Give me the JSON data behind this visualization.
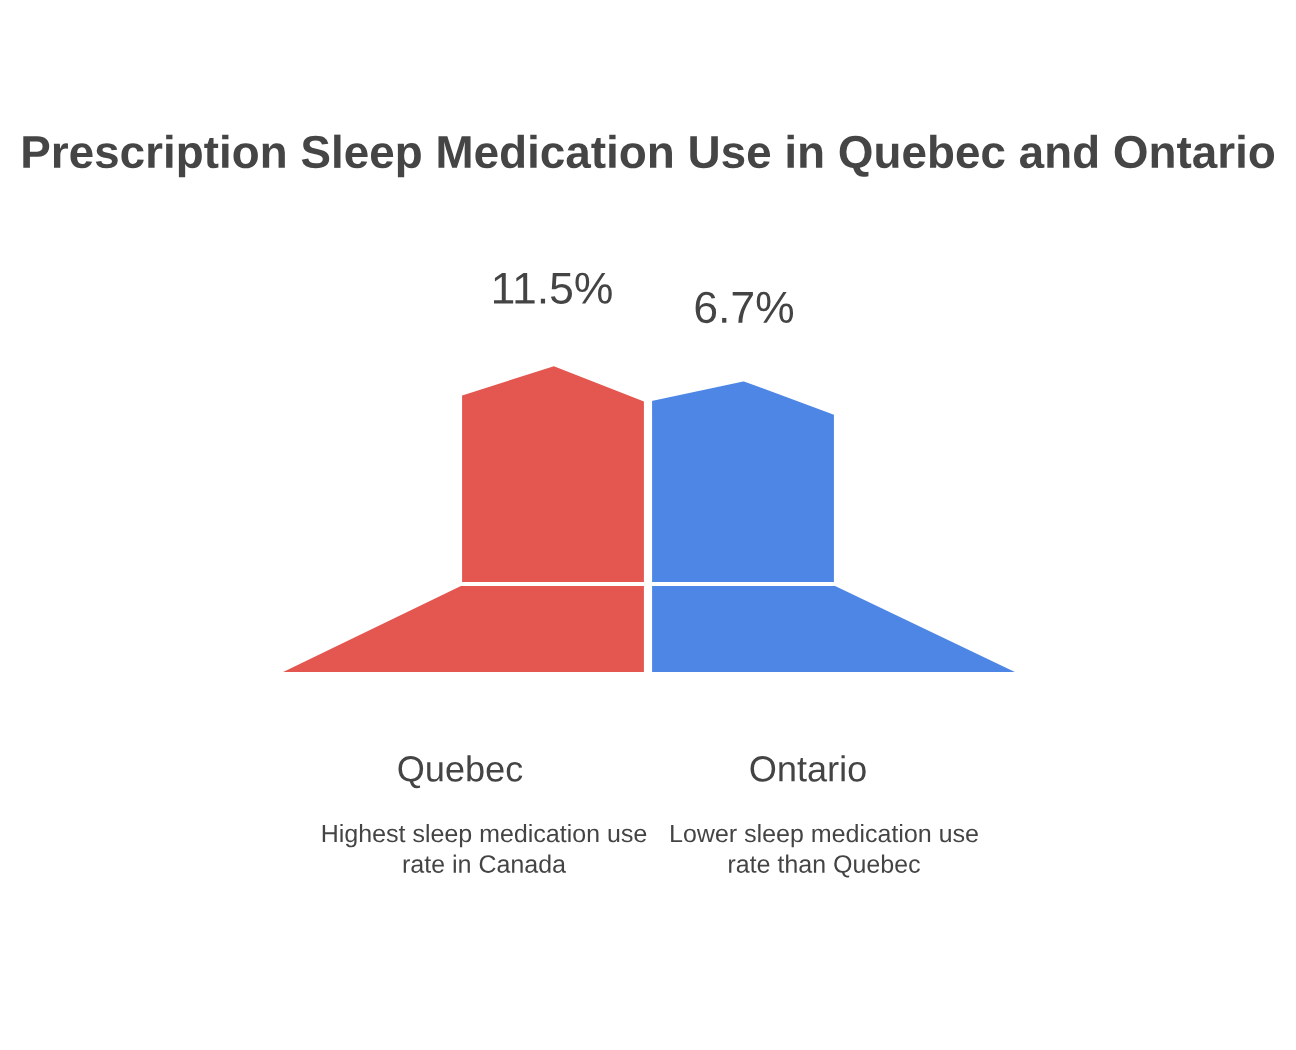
{
  "chart_data": {
    "type": "other",
    "title": "Prescription Sleep Medication Use in Quebec and Ontario",
    "categories": [
      "Quebec",
      "Ontario"
    ],
    "values": [
      11.5,
      6.7
    ],
    "value_labels": [
      "11.5%",
      "6.7%"
    ],
    "colors": [
      "#e45750",
      "#4d86e5"
    ],
    "annotations": [
      "Highest sleep medication use rate in Canada",
      "Lower sleep medication use rate than Quebec"
    ]
  }
}
